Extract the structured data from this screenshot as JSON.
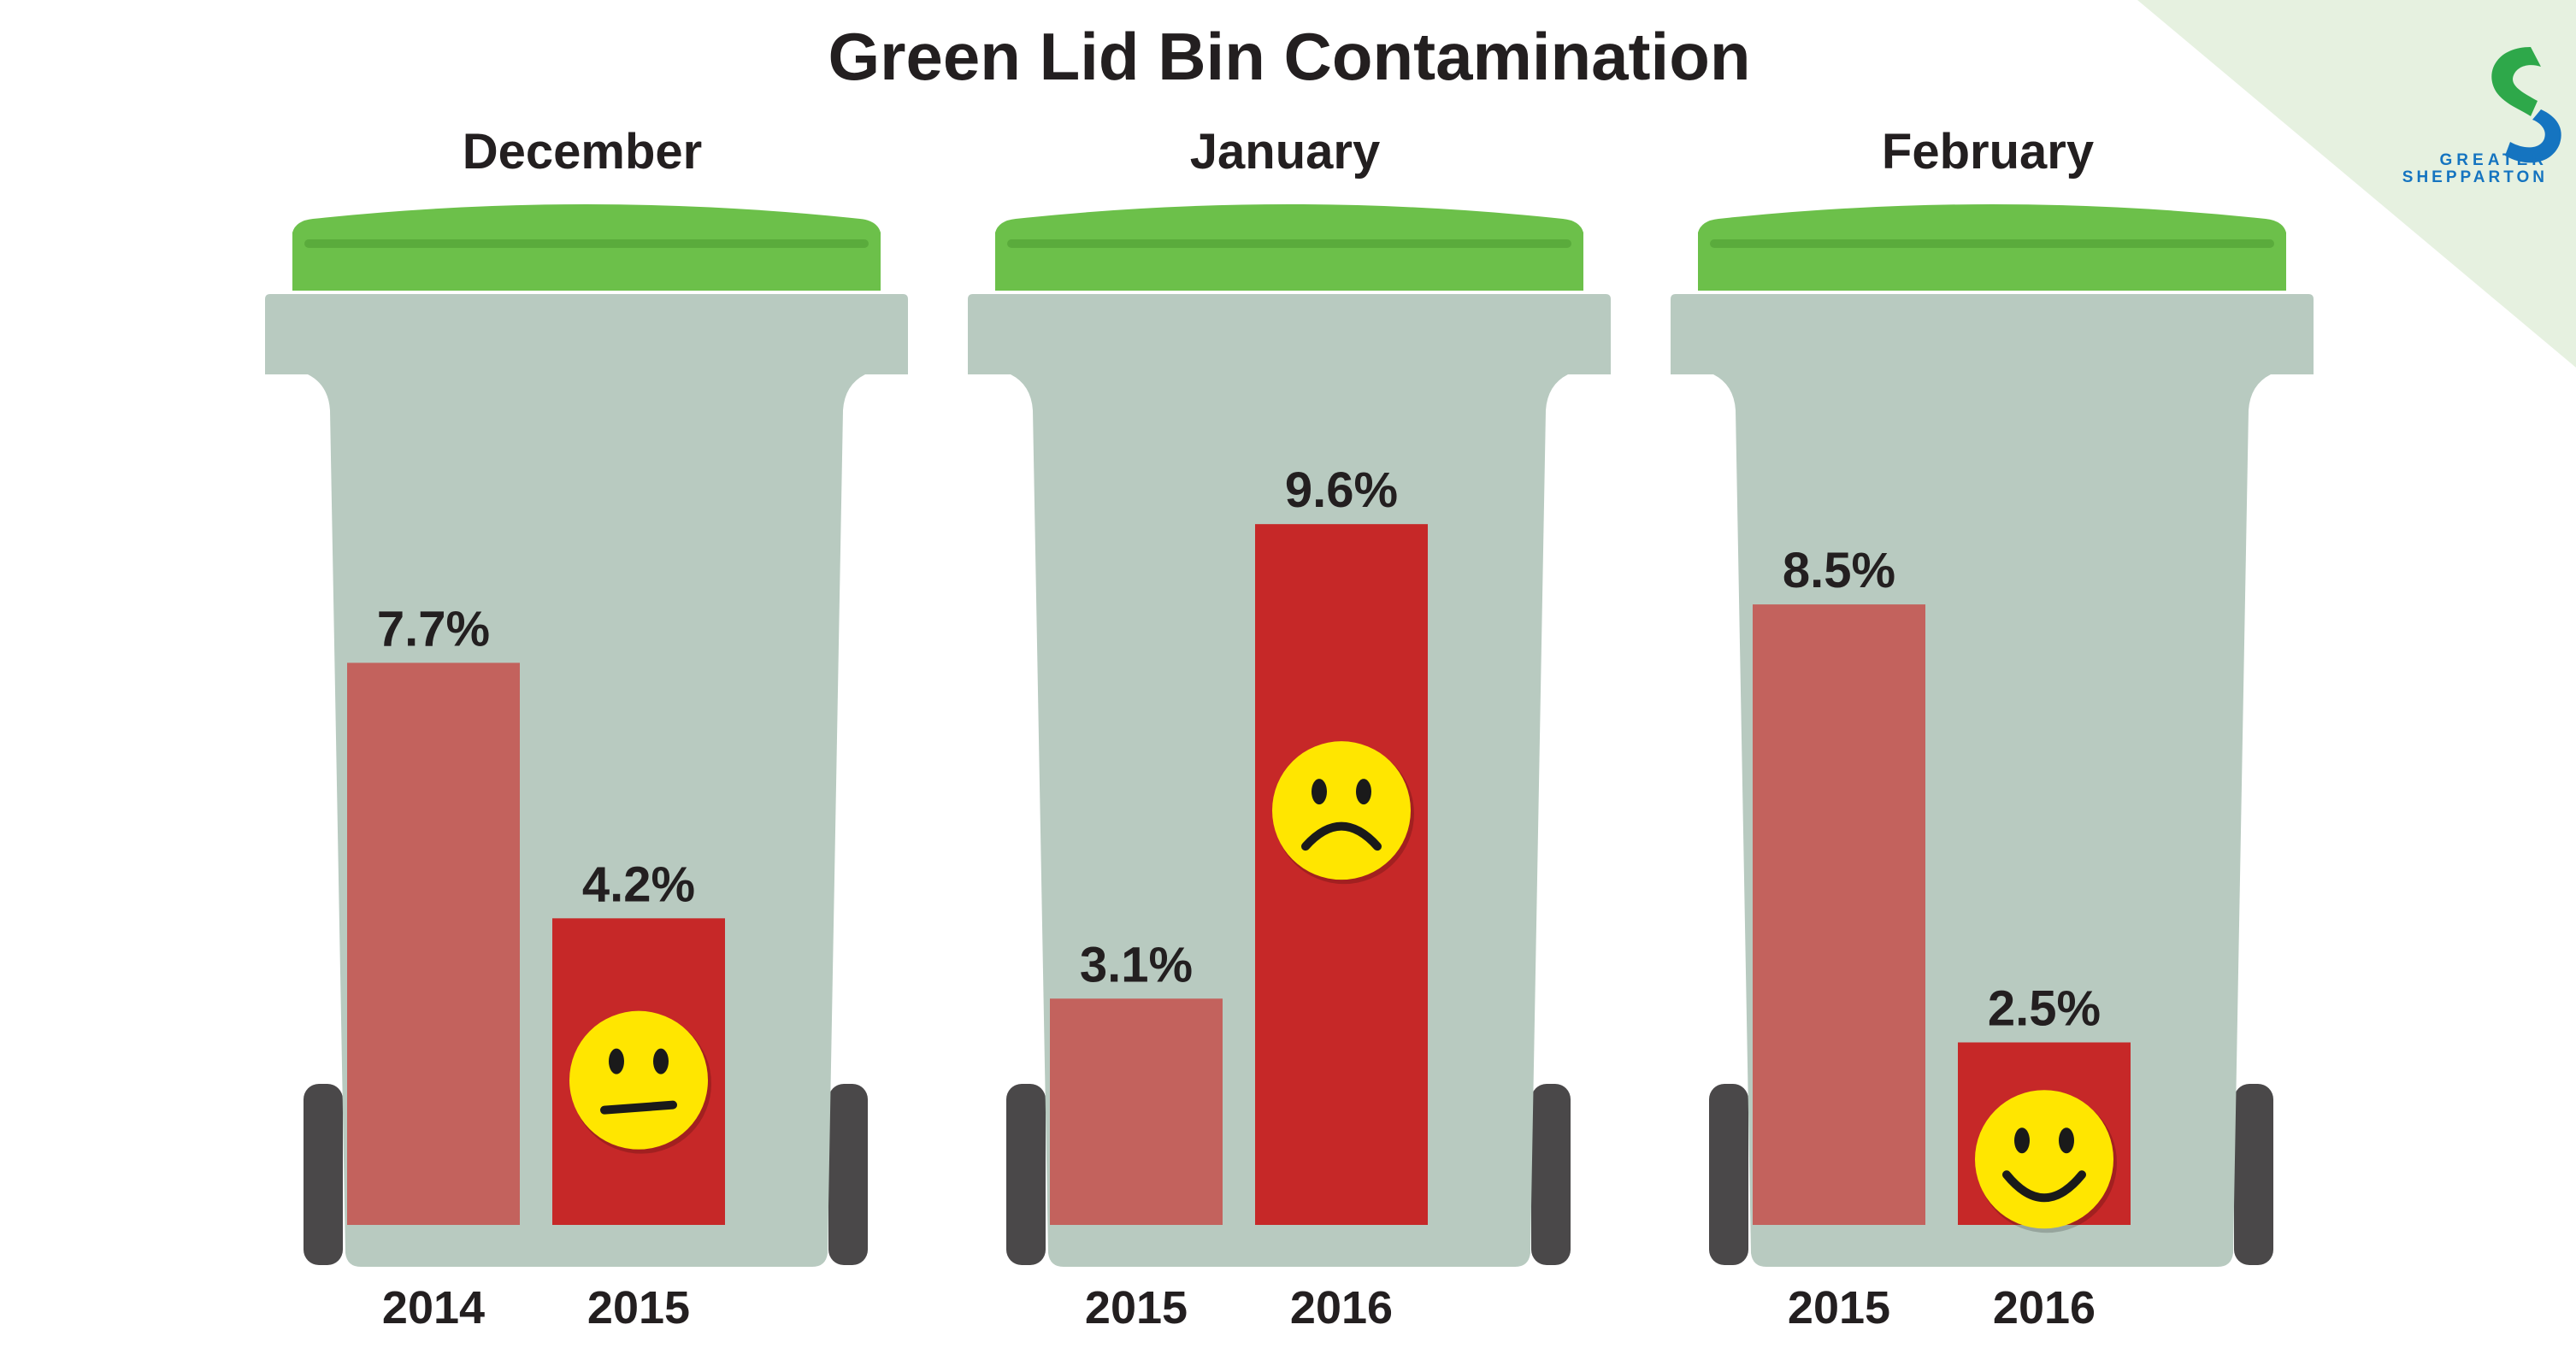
{
  "chart_data": {
    "type": "bar",
    "title": "Green Lid Bin Contamination",
    "value_suffix": "%",
    "ylim": [
      0,
      10
    ],
    "panels": [
      {
        "month": "December",
        "categories": [
          "2014",
          "2015"
        ],
        "values": [
          7.7,
          4.2
        ],
        "labels": [
          "7.7%",
          "4.2%"
        ],
        "face": "neutral"
      },
      {
        "month": "January",
        "categories": [
          "2015",
          "2016"
        ],
        "values": [
          3.1,
          9.6
        ],
        "labels": [
          "3.1%",
          "9.6%"
        ],
        "face": "sad"
      },
      {
        "month": "February",
        "categories": [
          "2015",
          "2016"
        ],
        "values": [
          8.5,
          2.5
        ],
        "labels": [
          "8.5%",
          "2.5%"
        ],
        "face": "happy"
      }
    ]
  },
  "logo": {
    "line1": "GREATER",
    "line2": "SHEPPARTON",
    "icon": "shepparton-s-logo-icon"
  },
  "colors": {
    "background": "#ffffff",
    "corner_tint": "#e6f1e0",
    "bin_body": "#b8cac0",
    "lid": "#6cc04a",
    "lid_stripe": "#5aab3c",
    "wheel": "#4a4849",
    "bar_previous": "#c3625d",
    "bar_current": "#c62828",
    "face": "#ffe600",
    "face_features": "#1a1a1a",
    "text": "#231f20",
    "logo_green": "#2ea84a",
    "logo_blue": "#1574c0"
  }
}
